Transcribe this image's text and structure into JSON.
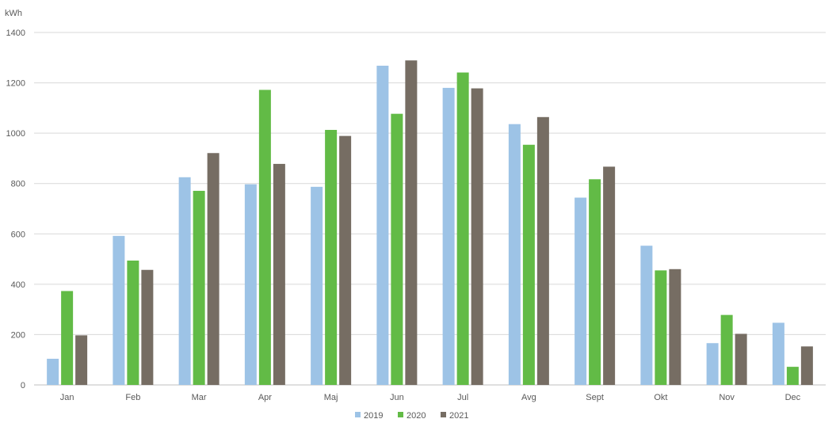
{
  "chart_data": {
    "type": "bar",
    "ylabel": "kWh",
    "ylim": [
      0,
      1400
    ],
    "yticks": [
      0,
      200,
      400,
      600,
      800,
      1000,
      1200,
      1400
    ],
    "categories": [
      "Jan",
      "Feb",
      "Mar",
      "Apr",
      "Maj",
      "Jun",
      "Jul",
      "Avg",
      "Sept",
      "Okt",
      "Nov",
      "Dec"
    ],
    "series": [
      {
        "name": "2019",
        "color": "#9dc3e6",
        "values": [
          104,
          592,
          825,
          797,
          787,
          1268,
          1180,
          1036,
          744,
          553,
          166,
          247
        ]
      },
      {
        "name": "2020",
        "color": "#62bb46",
        "values": [
          373,
          494,
          771,
          1172,
          1013,
          1077,
          1241,
          954,
          817,
          455,
          278,
          72
        ]
      },
      {
        "name": "2021",
        "color": "#766d63",
        "values": [
          197,
          457,
          921,
          878,
          989,
          1289,
          1178,
          1064,
          867,
          460,
          203,
          153
        ]
      }
    ],
    "grid": true,
    "legend_position": "bottom"
  }
}
